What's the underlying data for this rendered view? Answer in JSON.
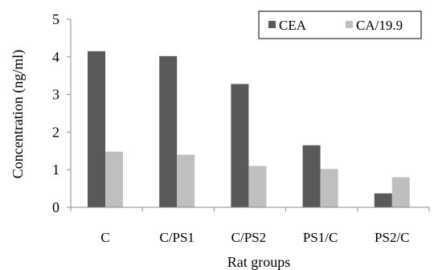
{
  "colors": {
    "background": "#ffffff",
    "axis": "#8c8c8c",
    "text": "#000000"
  },
  "chart_data": {
    "type": "bar",
    "title": "",
    "xlabel": "Rat groups",
    "ylabel": "Concentration (ng/ml)",
    "categories": [
      "C",
      "C/PS1",
      "C/PS2",
      "PS1/C",
      "PS2/C"
    ],
    "series": [
      {
        "name": "CEA",
        "values": [
          4.15,
          4.02,
          3.28,
          1.65,
          0.37
        ],
        "color": "#595959"
      },
      {
        "name": "CA/19.9",
        "values": [
          1.48,
          1.4,
          1.1,
          1.02,
          0.8
        ],
        "color": "#bfbfbf"
      }
    ],
    "ylim": [
      0,
      5
    ],
    "yticks": [
      "0",
      "1",
      "2",
      "3",
      "4",
      "5"
    ],
    "grid": false,
    "legend_position": "top-right"
  }
}
